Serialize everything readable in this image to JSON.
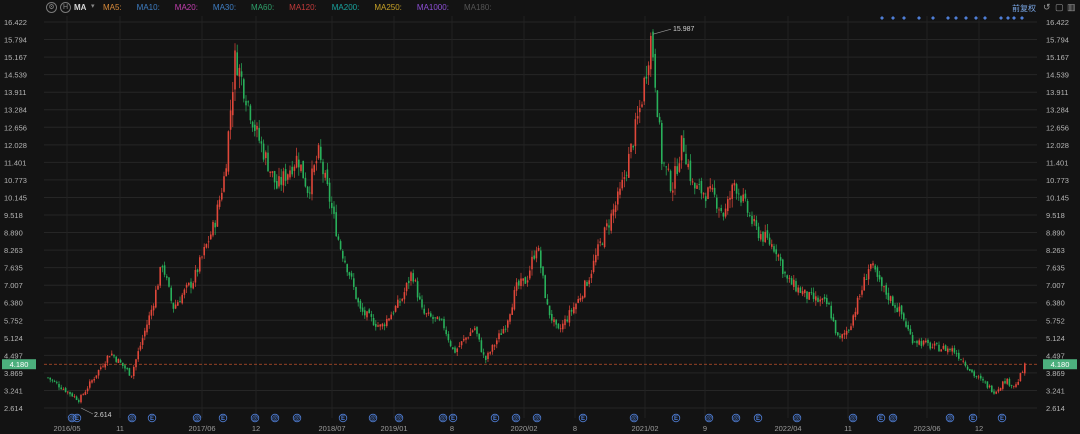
{
  "toolbar": {
    "settings_icon": "gear-icon",
    "help_icon": "circle-h-icon",
    "indicator": "MA",
    "ma_legend": [
      {
        "label": "MA5:",
        "color": "#d88a3a"
      },
      {
        "label": "MA10:",
        "color": "#3f7fc5"
      },
      {
        "label": "MA20:",
        "color": "#c43fb0"
      },
      {
        "label": "MA30:",
        "color": "#3f7fc5"
      },
      {
        "label": "MA60:",
        "color": "#2ea06a"
      },
      {
        "label": "MA120:",
        "color": "#c13a3a"
      },
      {
        "label": "MA200:",
        "color": "#19a5a0"
      },
      {
        "label": "MA250:",
        "color": "#c7a227"
      },
      {
        "label": "MA1000:",
        "color": "#8d4fd6"
      },
      {
        "label": "MA180:",
        "color": "#555555"
      }
    ],
    "adjust_label": "前复权",
    "right_icons": [
      "undo-icon",
      "window-icon",
      "bars-icon"
    ]
  },
  "chart_data": {
    "type": "candlestick",
    "title": "",
    "y_ticks": [
      "16.422",
      "15.794",
      "15.167",
      "14.539",
      "13.911",
      "13.284",
      "12.656",
      "12.028",
      "11.401",
      "10.773",
      "10.145",
      "9.518",
      "8.890",
      "8.263",
      "7.635",
      "7.007",
      "6.380",
      "5.752",
      "5.124",
      "4.497",
      "3.869",
      "3.241",
      "2.614"
    ],
    "ylim": [
      2.614,
      16.422
    ],
    "x_labels": [
      "2016/05",
      "11",
      "2017/06",
      "12",
      "2018/07",
      "2019/01",
      "8",
      "2020/02",
      "8",
      "2021/02",
      "9",
      "2022/04",
      "11",
      "2023/06",
      "12"
    ],
    "current_price": "4.180",
    "current_price_color": "#4caf7d",
    "up_color": "#e0473a",
    "down_color": "#28b05a",
    "annotations": [
      {
        "label": "15.987",
        "type": "high"
      },
      {
        "label": "2.614",
        "type": "low"
      }
    ],
    "price_path": [
      [
        "2016/05",
        3.7
      ],
      [
        "2016/08",
        2.9
      ],
      [
        "2016/11",
        4.6
      ],
      [
        "2017/01",
        3.8
      ],
      [
        "2017/03",
        6.2
      ],
      [
        "2017/04",
        7.8
      ],
      [
        "2017/05",
        6.2
      ],
      [
        "2017/07",
        7.2
      ],
      [
        "2017/09",
        9.2
      ],
      [
        "2017/10",
        11.0
      ],
      [
        "2017/11",
        15.2
      ],
      [
        "2018/01",
        12.5
      ],
      [
        "2018/03",
        10.5
      ],
      [
        "2018/05",
        11.6
      ],
      [
        "2018/06",
        10.4
      ],
      [
        "2018/07",
        11.7
      ],
      [
        "2018/08",
        10.2
      ],
      [
        "2018/09",
        8.5
      ],
      [
        "2018/10",
        7.4
      ],
      [
        "2018/11",
        6.1
      ],
      [
        "2019/01",
        5.5
      ],
      [
        "2019/03",
        6.5
      ],
      [
        "2019/04",
        7.5
      ],
      [
        "2019/05",
        6.0
      ],
      [
        "2019/07",
        5.6
      ],
      [
        "2019/08",
        4.6
      ],
      [
        "2019/10",
        5.5
      ],
      [
        "2019/11",
        4.3
      ],
      [
        "2020/01",
        5.6
      ],
      [
        "2020/02",
        6.9
      ],
      [
        "2020/03",
        7.2
      ],
      [
        "2020/04",
        8.5
      ],
      [
        "2020/05",
        6.2
      ],
      [
        "2020/06",
        5.3
      ],
      [
        "2020/08",
        6.5
      ],
      [
        "2020/09",
        7.3
      ],
      [
        "2020/10",
        8.4
      ],
      [
        "2020/12",
        10.3
      ],
      [
        "2021/01",
        11.8
      ],
      [
        "2021/02",
        13.5
      ],
      [
        "2021/03",
        15.99
      ],
      [
        "2021/04",
        11.5
      ],
      [
        "2021/05",
        10.5
      ],
      [
        "2021/06",
        12.2
      ],
      [
        "2021/07",
        10.5
      ],
      [
        "2021/09",
        10.2
      ],
      [
        "2021/10",
        9.5
      ],
      [
        "2021/11",
        10.7
      ],
      [
        "2022/01",
        9.0
      ],
      [
        "2022/03",
        8.3
      ],
      [
        "2022/04",
        7.2
      ],
      [
        "2022/06",
        6.6
      ],
      [
        "2022/08",
        6.3
      ],
      [
        "2022/09",
        5.0
      ],
      [
        "2022/10",
        5.5
      ],
      [
        "2022/11",
        6.6
      ],
      [
        "2022/12",
        7.8
      ],
      [
        "2023/01",
        7.0
      ],
      [
        "2023/03",
        6.0
      ],
      [
        "2023/04",
        5.1
      ],
      [
        "2023/06",
        4.8
      ],
      [
        "2023/08",
        4.7
      ],
      [
        "2023/09",
        4.3
      ],
      [
        "2023/10",
        3.8
      ],
      [
        "2023/12",
        3.2
      ],
      [
        "2024/01",
        3.6
      ],
      [
        "2024/02",
        3.4
      ],
      [
        "2024/03",
        4.18
      ]
    ],
    "events": [
      {
        "label": "@",
        "type": "dividend"
      },
      {
        "label": "E",
        "type": "earnings"
      },
      {
        "label": "@",
        "type": "dividend"
      },
      {
        "label": "E",
        "type": "earnings"
      },
      {
        "label": "@",
        "type": "dividend"
      },
      {
        "label": "E",
        "type": "earnings"
      },
      {
        "label": "@",
        "type": "dividend"
      },
      {
        "label": "@",
        "type": "dividend"
      },
      {
        "label": "@",
        "type": "dividend"
      },
      {
        "label": "E",
        "type": "earnings"
      },
      {
        "label": "@",
        "type": "dividend"
      },
      {
        "label": "@",
        "type": "dividend"
      },
      {
        "label": "@",
        "type": "dividend"
      },
      {
        "label": "E",
        "type": "earnings"
      },
      {
        "label": "E",
        "type": "earnings"
      },
      {
        "label": "@",
        "type": "dividend"
      },
      {
        "label": "@",
        "type": "dividend"
      },
      {
        "label": "E",
        "type": "earnings"
      },
      {
        "label": "@",
        "type": "dividend"
      },
      {
        "label": "E",
        "type": "earnings"
      },
      {
        "label": "@",
        "type": "dividend"
      },
      {
        "label": "@",
        "type": "dividend"
      },
      {
        "label": "E",
        "type": "earnings"
      },
      {
        "label": "@",
        "type": "dividend"
      },
      {
        "label": "@",
        "type": "dividend"
      },
      {
        "label": "E",
        "type": "earnings"
      },
      {
        "label": "@",
        "type": "dividend"
      },
      {
        "label": "@",
        "type": "dividend"
      },
      {
        "label": "E",
        "type": "earnings"
      },
      {
        "label": "E",
        "type": "earnings"
      }
    ]
  }
}
